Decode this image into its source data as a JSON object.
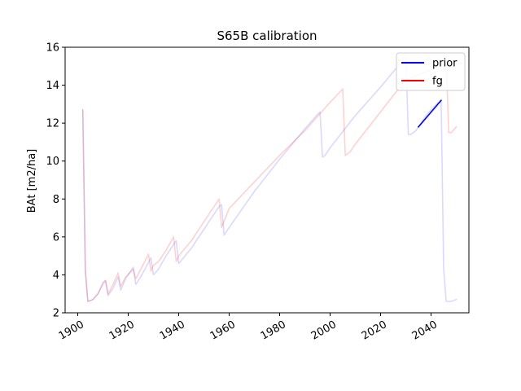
{
  "chart_data": {
    "type": "line",
    "title": "S65B calibration",
    "xlabel": "",
    "ylabel": "BAt [m2/ha]",
    "xlim": [
      1895,
      2055
    ],
    "ylim": [
      2,
      16
    ],
    "x_ticks": [
      1900,
      1920,
      1940,
      1960,
      1980,
      2000,
      2020,
      2040
    ],
    "x_tick_labels": [
      "1900",
      "1920",
      "1940",
      "1960",
      "1980",
      "2000",
      "2020",
      "2040"
    ],
    "y_ticks": [
      2,
      4,
      6,
      8,
      10,
      12,
      14,
      16
    ],
    "y_tick_labels": [
      "2",
      "4",
      "6",
      "8",
      "10",
      "12",
      "14",
      "16"
    ],
    "grid": false,
    "legend_position": "top-right",
    "legend": [
      {
        "label": "prior",
        "color": "#0000ff"
      },
      {
        "label": "fg",
        "color": "#ff0000"
      }
    ],
    "series": [
      {
        "name": "prior",
        "color": "#0000ff",
        "opacity": 0.15,
        "x": [
          1902,
          1903,
          1904,
          1906,
          1908,
          1910,
          1911,
          1912,
          1914,
          1916,
          1917,
          1919,
          1922,
          1923,
          1925,
          1929,
          1930,
          1932,
          1935,
          1939,
          1940,
          1945,
          1950,
          1956,
          1957,
          1958,
          1960,
          1970,
          1980,
          1990,
          1996,
          1997,
          1998,
          2000,
          2010,
          2020,
          2030,
          2031,
          2032,
          2034,
          2036,
          2038,
          2040,
          2042,
          2044,
          2045,
          2046,
          2048,
          2050
        ],
        "y": [
          12.7,
          4.3,
          2.6,
          2.7,
          3.0,
          3.6,
          3.7,
          2.9,
          3.3,
          3.9,
          3.2,
          3.8,
          4.4,
          3.5,
          3.9,
          4.9,
          4.0,
          4.3,
          5.0,
          5.8,
          4.6,
          5.4,
          6.4,
          7.6,
          7.7,
          6.1,
          6.5,
          8.4,
          10.1,
          11.7,
          12.6,
          10.2,
          10.3,
          10.7,
          12.4,
          13.9,
          15.5,
          11.4,
          11.4,
          11.6,
          12.0,
          12.4,
          12.7,
          13.0,
          13.2,
          4.3,
          2.6,
          2.6,
          2.7
        ]
      },
      {
        "name": "fg",
        "color": "#ff0000",
        "opacity": 0.18,
        "x": [
          1902,
          1903,
          1904,
          1906,
          1908,
          1910,
          1911,
          1912,
          1914,
          1916,
          1917,
          1919,
          1922,
          1923,
          1925,
          1928,
          1929,
          1930,
          1932,
          1935,
          1938,
          1939,
          1940,
          1945,
          1950,
          1955,
          1956,
          1957,
          1960,
          1970,
          1980,
          1990,
          1996,
          2000,
          2005,
          2006,
          2008,
          2010,
          2020,
          2030,
          2040,
          2044,
          2046,
          2047,
          2048,
          2050
        ],
        "y": [
          12.7,
          4.2,
          2.6,
          2.7,
          3.0,
          3.5,
          3.7,
          3.0,
          3.5,
          4.1,
          3.4,
          3.9,
          4.3,
          3.8,
          4.3,
          5.1,
          4.2,
          4.5,
          4.7,
          5.3,
          6.0,
          4.7,
          5.0,
          5.8,
          6.8,
          7.8,
          8.0,
          6.5,
          7.5,
          8.9,
          10.3,
          11.6,
          12.5,
          13.1,
          13.8,
          10.3,
          10.5,
          10.9,
          12.6,
          14.3,
          14.8,
          15.3,
          15.3,
          11.5,
          11.5,
          11.8
        ]
      },
      {
        "name": "prior",
        "color": "#0000ff",
        "opacity": 1,
        "x": [
          2035,
          2044
        ],
        "y": [
          11.8,
          13.2
        ]
      }
    ]
  }
}
